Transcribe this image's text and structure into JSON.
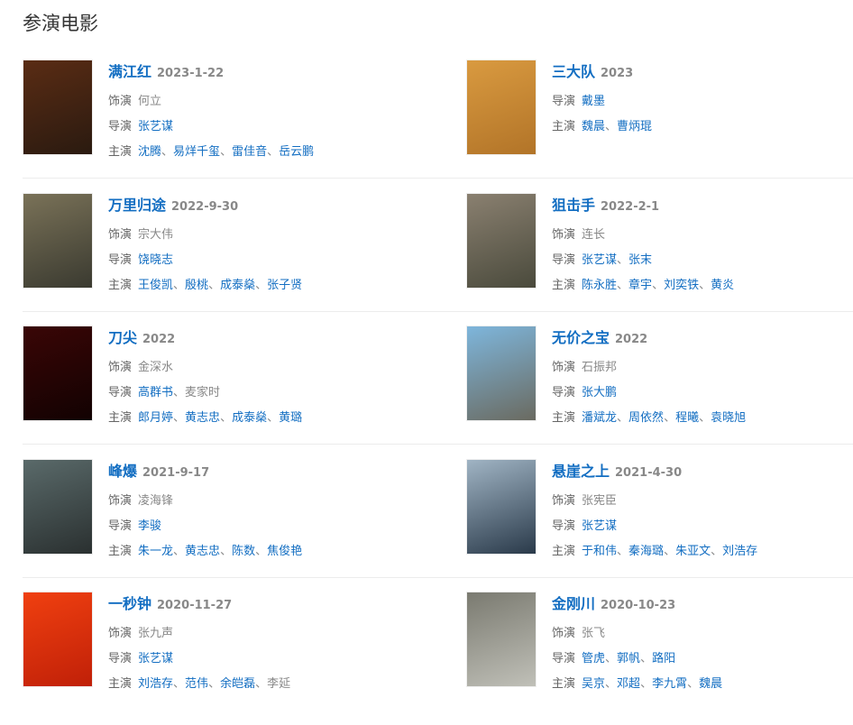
{
  "section_title": "参演电影",
  "labels": {
    "role": "饰演",
    "director": "导演",
    "cast": "主演",
    "sep": "、"
  },
  "movies": [
    {
      "name": "满江红",
      "date": "2023-1-22",
      "role": "何立",
      "directors": [
        {
          "n": "张艺谋",
          "link": true
        }
      ],
      "cast": [
        {
          "n": "沈腾",
          "link": true
        },
        {
          "n": "易烊千玺",
          "link": true
        },
        {
          "n": "雷佳音",
          "link": true
        },
        {
          "n": "岳云鹏",
          "link": true
        }
      ],
      "poster_colors": [
        "#5a2c14",
        "#2a1a10"
      ]
    },
    {
      "name": "三大队",
      "date": "2023",
      "directors": [
        {
          "n": "戴墨",
          "link": true
        }
      ],
      "cast": [
        {
          "n": "魏晨",
          "link": true
        },
        {
          "n": "曹炳琨",
          "link": true
        }
      ],
      "poster_colors": [
        "#d99a40",
        "#b27428"
      ]
    },
    {
      "name": "万里归途",
      "date": "2022-9-30",
      "role": "宗大伟",
      "directors": [
        {
          "n": "饶晓志",
          "link": true
        }
      ],
      "cast": [
        {
          "n": "王俊凯",
          "link": true
        },
        {
          "n": "殷桃",
          "link": true
        },
        {
          "n": "成泰燊",
          "link": true
        },
        {
          "n": "张子贤",
          "link": true
        }
      ],
      "poster_colors": [
        "#7a7258",
        "#3a3a30"
      ]
    },
    {
      "name": "狙击手",
      "date": "2022-2-1",
      "role": "连长",
      "directors": [
        {
          "n": "张艺谋",
          "link": true
        },
        {
          "n": "张末",
          "link": true
        }
      ],
      "cast": [
        {
          "n": "陈永胜",
          "link": true
        },
        {
          "n": "章宇",
          "link": true
        },
        {
          "n": "刘奕铁",
          "link": true
        },
        {
          "n": "黄炎",
          "link": true
        }
      ],
      "poster_colors": [
        "#8a8070",
        "#4a4a3c"
      ]
    },
    {
      "name": "刀尖",
      "date": "2022",
      "role": "金深水",
      "directors": [
        {
          "n": "高群书",
          "link": true
        },
        {
          "n": "麦家时",
          "link": false
        }
      ],
      "cast": [
        {
          "n": "郎月婷",
          "link": true
        },
        {
          "n": "黄志忠",
          "link": true
        },
        {
          "n": "成泰燊",
          "link": true
        },
        {
          "n": "黄璐",
          "link": true
        }
      ],
      "poster_colors": [
        "#3a0606",
        "#120202"
      ]
    },
    {
      "name": "无价之宝",
      "date": "2022",
      "role": "石振邦",
      "directors": [
        {
          "n": "张大鹏",
          "link": true
        }
      ],
      "cast": [
        {
          "n": "潘斌龙",
          "link": true
        },
        {
          "n": "周依然",
          "link": true
        },
        {
          "n": "程曦",
          "link": true
        },
        {
          "n": "袁晓旭",
          "link": true
        }
      ],
      "poster_colors": [
        "#7eb6dc",
        "#6a6a60"
      ]
    },
    {
      "name": "峰爆",
      "date": "2021-9-17",
      "role": "凌海锋",
      "directors": [
        {
          "n": "李骏",
          "link": true
        }
      ],
      "cast": [
        {
          "n": "朱一龙",
          "link": true
        },
        {
          "n": "黄志忠",
          "link": true
        },
        {
          "n": "陈数",
          "link": true
        },
        {
          "n": "焦俊艳",
          "link": true
        }
      ],
      "poster_colors": [
        "#5a6a6a",
        "#2a3030"
      ]
    },
    {
      "name": "悬崖之上",
      "date": "2021-4-30",
      "role": "张宪臣",
      "directors": [
        {
          "n": "张艺谋",
          "link": true
        }
      ],
      "cast": [
        {
          "n": "于和伟",
          "link": true
        },
        {
          "n": "秦海璐",
          "link": true
        },
        {
          "n": "朱亚文",
          "link": true
        },
        {
          "n": "刘浩存",
          "link": true
        }
      ],
      "poster_colors": [
        "#a0b4c4",
        "#2a3a4a"
      ]
    },
    {
      "name": "一秒钟",
      "date": "2020-11-27",
      "role": "张九声",
      "directors": [
        {
          "n": "张艺谋",
          "link": true
        }
      ],
      "cast": [
        {
          "n": "刘浩存",
          "link": true
        },
        {
          "n": "范伟",
          "link": true
        },
        {
          "n": "余皑磊",
          "link": true
        },
        {
          "n": "李延",
          "link": false
        }
      ],
      "poster_colors": [
        "#f04010",
        "#c02008"
      ]
    },
    {
      "name": "金刚川",
      "date": "2020-10-23",
      "role": "张飞",
      "directors": [
        {
          "n": "管虎",
          "link": true
        },
        {
          "n": "郭帆",
          "link": true
        },
        {
          "n": "路阳",
          "link": true
        }
      ],
      "cast": [
        {
          "n": "吴京",
          "link": true
        },
        {
          "n": "邓超",
          "link": true
        },
        {
          "n": "李九霄",
          "link": true
        },
        {
          "n": "魏晨",
          "link": true
        }
      ],
      "poster_colors": [
        "#7a7a70",
        "#c0c0b8"
      ]
    }
  ]
}
